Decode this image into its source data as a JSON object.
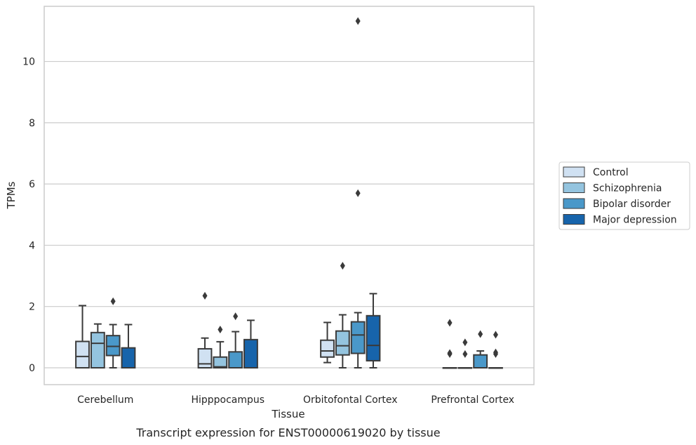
{
  "caption": "Transcript expression for ENST00000619020 by tissue",
  "colors": {
    "grid": "#cccccc",
    "frame": "#cccccc",
    "box_line": "#3a3a3a",
    "series": [
      "#d0e1f2",
      "#94c4df",
      "#4a98c9",
      "#1764ab"
    ]
  },
  "chart_data": {
    "type": "box",
    "title": "",
    "xlabel": "Tissue",
    "ylabel": "TPMs",
    "ylim": [
      -0.55,
      11.8
    ],
    "yticks": [
      0,
      2,
      4,
      6,
      8,
      10
    ],
    "grid": true,
    "legend_placement": "right",
    "categories": [
      "Cerebellum",
      "Hipppocampus",
      "Orbitofontal Cortex",
      "Prefrontal Cortex"
    ],
    "series": [
      {
        "name": "Control",
        "boxes": [
          {
            "whislo": 0,
            "q1": 0,
            "med": 0.37,
            "q3": 0.86,
            "whishi": 2.03,
            "fliers": []
          },
          {
            "whislo": 0,
            "q1": 0,
            "med": 0.13,
            "q3": 0.62,
            "whishi": 0.97,
            "fliers": [
              2.35
            ]
          },
          {
            "whislo": 0.17,
            "q1": 0.35,
            "med": 0.55,
            "q3": 0.9,
            "whishi": 1.48,
            "fliers": []
          },
          {
            "whislo": 0,
            "q1": 0,
            "med": 0,
            "q3": 0,
            "whishi": 0,
            "fliers": [
              0.45,
              0.48,
              1.47
            ]
          }
        ]
      },
      {
        "name": "Schizophrenia",
        "boxes": [
          {
            "whislo": 0,
            "q1": 0,
            "med": 0.8,
            "q3": 1.15,
            "whishi": 1.43,
            "fliers": []
          },
          {
            "whislo": 0,
            "q1": 0,
            "med": 0.03,
            "q3": 0.35,
            "whishi": 0.85,
            "fliers": [
              1.25
            ]
          },
          {
            "whislo": 0,
            "q1": 0.42,
            "med": 0.72,
            "q3": 1.2,
            "whishi": 1.73,
            "fliers": [
              3.33
            ]
          },
          {
            "whislo": 0,
            "q1": 0,
            "med": 0,
            "q3": 0,
            "whishi": 0,
            "fliers": [
              0.45,
              0.83
            ]
          }
        ]
      },
      {
        "name": "Bipolar disorder",
        "boxes": [
          {
            "whislo": 0,
            "q1": 0.4,
            "med": 0.7,
            "q3": 1.05,
            "whishi": 1.41,
            "fliers": [
              2.17
            ]
          },
          {
            "whislo": 0,
            "q1": 0,
            "med": 0,
            "q3": 0.52,
            "whishi": 1.18,
            "fliers": [
              1.68
            ]
          },
          {
            "whislo": 0,
            "q1": 0.47,
            "med": 1.07,
            "q3": 1.5,
            "whishi": 1.8,
            "fliers": [
              5.7,
              11.32
            ]
          },
          {
            "whislo": 0,
            "q1": 0,
            "med": 0,
            "q3": 0.42,
            "whishi": 0.55,
            "fliers": [
              1.1
            ]
          }
        ]
      },
      {
        "name": "Major depression",
        "boxes": [
          {
            "whislo": 0,
            "q1": 0,
            "med": 0,
            "q3": 0.65,
            "whishi": 1.41,
            "fliers": []
          },
          {
            "whislo": 0,
            "q1": 0,
            "med": 0,
            "q3": 0.92,
            "whishi": 1.55,
            "fliers": []
          },
          {
            "whislo": 0,
            "q1": 0.23,
            "med": 0.73,
            "q3": 1.7,
            "whishi": 2.42,
            "fliers": []
          },
          {
            "whislo": 0,
            "q1": 0,
            "med": 0,
            "q3": 0,
            "whishi": 0,
            "fliers": [
              0.45,
              0.5,
              1.08
            ]
          }
        ]
      }
    ]
  }
}
